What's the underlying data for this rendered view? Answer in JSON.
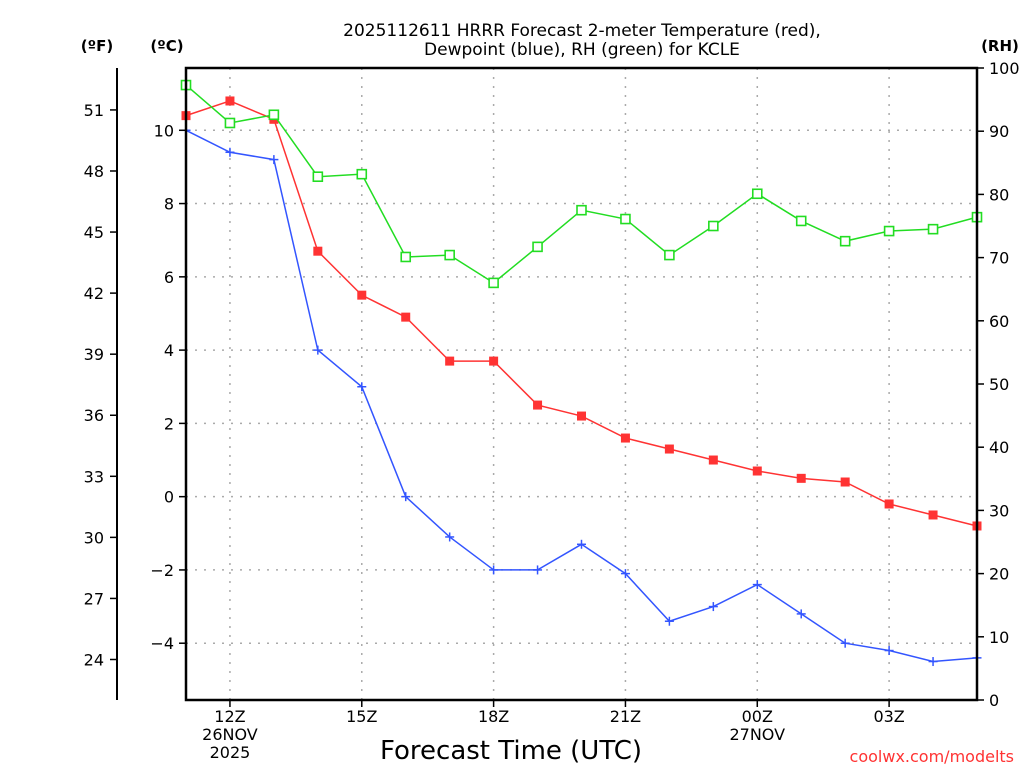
{
  "chart_data": {
    "type": "line",
    "title": [
      "2025112611 HRRR Forecast 2-meter Temperature (red),",
      "Dewpoint (blue), RH (green) for KCLE"
    ],
    "xlabel": "Forecast Time (UTC)",
    "credit": "coolwx.com/modelts",
    "x": [
      "11Z",
      "12Z",
      "13Z",
      "14Z",
      "15Z",
      "16Z",
      "17Z",
      "18Z",
      "19Z",
      "20Z",
      "21Z",
      "22Z",
      "23Z",
      "00Z",
      "01Z",
      "02Z",
      "03Z",
      "04Z",
      "05Z"
    ],
    "x_ticks": [
      {
        "at": "12Z",
        "lines": [
          "12Z",
          "26NOV",
          "2025"
        ]
      },
      {
        "at": "15Z",
        "lines": [
          "15Z"
        ]
      },
      {
        "at": "18Z",
        "lines": [
          "18Z"
        ]
      },
      {
        "at": "21Z",
        "lines": [
          "21Z"
        ]
      },
      {
        "at": "00Z",
        "lines": [
          "00Z",
          "27NOV"
        ]
      },
      {
        "at": "03Z",
        "lines": [
          "03Z"
        ]
      }
    ],
    "axes": {
      "fahrenheit": {
        "label": "(ºF)",
        "ticks": [
          24,
          27,
          30,
          33,
          36,
          39,
          42,
          45,
          48,
          51
        ]
      },
      "celsius": {
        "label": "(ºC)",
        "ticks": [
          -4,
          -2,
          0,
          2,
          4,
          6,
          8,
          10
        ],
        "ylim": [
          -5.55,
          11.7
        ]
      },
      "rh": {
        "label": "(RH)",
        "ticks": [
          0,
          10,
          20,
          30,
          40,
          50,
          60,
          70,
          80,
          90,
          100
        ],
        "ylim": [
          0,
          100
        ]
      }
    },
    "grid": true,
    "series": [
      {
        "name": "Temperature",
        "axis": "celsius",
        "color": "#ff3333",
        "marker": "filled-square",
        "values": [
          10.4,
          10.8,
          10.3,
          6.7,
          5.5,
          4.9,
          3.7,
          3.7,
          2.5,
          2.2,
          1.6,
          1.3,
          1.0,
          0.7,
          0.5,
          0.4,
          -0.2,
          -0.5,
          -0.8
        ]
      },
      {
        "name": "Dewpoint",
        "axis": "celsius",
        "color": "#3355ff",
        "marker": "plus",
        "values": [
          10.0,
          9.4,
          9.2,
          4.0,
          3.0,
          0.0,
          -1.1,
          -2.0,
          -2.0,
          -1.3,
          -2.1,
          -3.4,
          -3.0,
          -2.4,
          -3.2,
          -4.0,
          -4.2,
          -4.5,
          -4.4
        ]
      },
      {
        "name": "RH",
        "axis": "rh",
        "color": "#22dd22",
        "marker": "open-square",
        "values": [
          97.3,
          91.3,
          92.6,
          82.8,
          83.2,
          70.1,
          70.4,
          66.0,
          71.7,
          77.5,
          76.1,
          70.4,
          75.0,
          80.1,
          75.8,
          72.6,
          74.2,
          74.5,
          76.4
        ]
      }
    ]
  }
}
